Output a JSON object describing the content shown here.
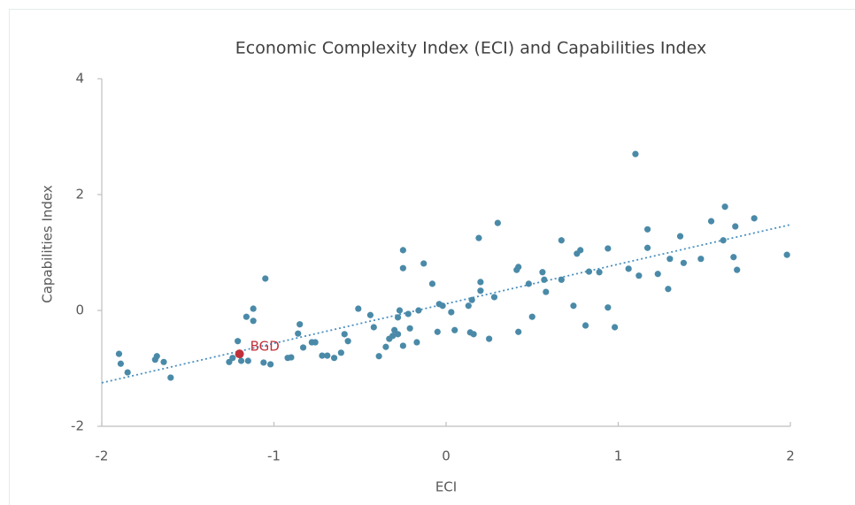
{
  "chart_data": {
    "type": "scatter",
    "title": "Economic Complexity Index (ECI) and Capabilities Index",
    "x_label": "ECI",
    "y_label": "Capabilities Index",
    "xlim": [
      -2,
      2
    ],
    "ylim": [
      -2,
      4
    ],
    "xticks": [
      -2,
      -1,
      0,
      1,
      2
    ],
    "yticks": [
      -2,
      0,
      2,
      4
    ],
    "color": "#4a8aa8",
    "x": [
      -1.9,
      -1.89,
      -1.85,
      -1.68,
      -1.69,
      -1.64,
      -1.6,
      -1.26,
      -1.24,
      -1.21,
      -1.19,
      -1.16,
      -1.15,
      -1.12,
      -1.12,
      -1.06,
      -1.05,
      -1.02,
      -0.92,
      -0.9,
      -0.86,
      -0.85,
      -0.83,
      -0.78,
      -0.76,
      -0.72,
      -0.69,
      -0.65,
      -0.61,
      -0.59,
      -0.57,
      -0.51,
      -0.44,
      -0.42,
      -0.39,
      -0.35,
      -0.33,
      -0.31,
      -0.3,
      -0.28,
      -0.28,
      -0.27,
      -0.25,
      -0.25,
      -0.25,
      -0.22,
      -0.21,
      -0.17,
      -0.16,
      -0.13,
      -0.08,
      -0.05,
      -0.04,
      -0.02,
      0.03,
      0.05,
      0.13,
      0.14,
      0.15,
      0.16,
      0.19,
      0.2,
      0.2,
      0.25,
      0.28,
      0.3,
      0.41,
      0.42,
      0.42,
      0.48,
      0.5,
      0.56,
      0.57,
      0.58,
      0.67,
      0.67,
      0.74,
      0.76,
      0.78,
      0.81,
      0.83,
      0.89,
      0.94,
      0.94,
      0.98,
      1.06,
      1.1,
      1.12,
      1.17,
      1.17,
      1.23,
      1.29,
      1.3,
      1.36,
      1.38,
      1.48,
      1.54,
      1.61,
      1.62,
      1.67,
      1.68,
      1.69,
      1.79,
      1.98
    ],
    "values": [
      -0.75,
      -0.92,
      -1.07,
      -0.79,
      -0.85,
      -0.89,
      -1.16,
      -0.89,
      -0.82,
      -0.53,
      -0.87,
      -0.11,
      -0.87,
      0.03,
      -0.18,
      -0.9,
      0.55,
      -0.93,
      -0.82,
      -0.81,
      -0.4,
      -0.24,
      -0.64,
      -0.55,
      -0.55,
      -0.78,
      -0.78,
      -0.82,
      -0.73,
      -0.41,
      -0.53,
      0.03,
      -0.08,
      -0.29,
      -0.79,
      -0.63,
      -0.49,
      -0.44,
      -0.34,
      -0.41,
      -0.12,
      0.0,
      -0.61,
      1.04,
      0.73,
      -0.06,
      -0.31,
      -0.55,
      0.0,
      0.81,
      0.46,
      -0.37,
      0.11,
      0.08,
      -0.03,
      -0.34,
      0.08,
      -0.38,
      0.18,
      -0.41,
      1.25,
      0.49,
      0.34,
      -0.49,
      0.23,
      1.51,
      0.7,
      -0.37,
      0.75,
      0.46,
      -0.11,
      0.66,
      0.53,
      0.32,
      0.53,
      1.21,
      0.08,
      0.98,
      1.04,
      -0.26,
      0.67,
      0.66,
      1.07,
      0.05,
      -0.29,
      0.72,
      2.7,
      0.6,
      1.4,
      1.08,
      0.63,
      0.37,
      0.89,
      1.28,
      0.82,
      0.89,
      1.54,
      1.21,
      1.79,
      0.92,
      1.45,
      0.7,
      1.59,
      0.96
    ],
    "highlight": {
      "label": "BGD",
      "x": -1.2,
      "y": -0.75,
      "color": "#c0303a"
    },
    "trendline": {
      "x": [
        -2,
        2
      ],
      "y": [
        -1.25,
        1.48
      ],
      "color": "#4a8fbf"
    }
  }
}
